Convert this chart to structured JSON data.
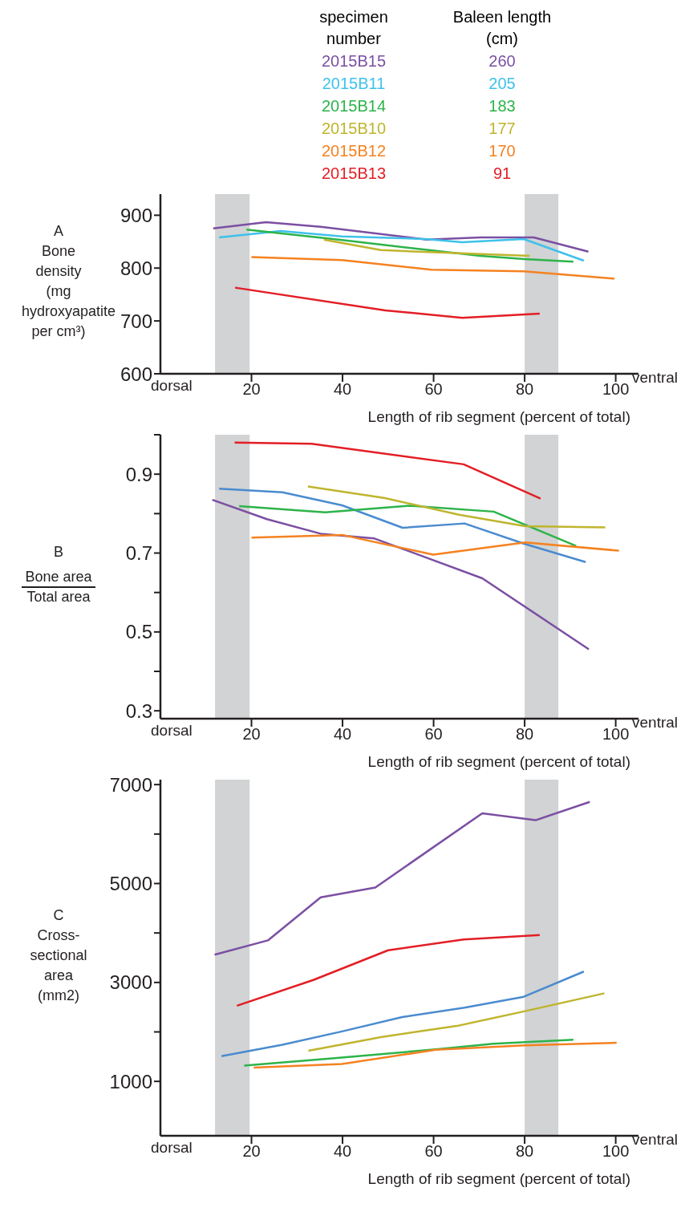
{
  "chart_data": [
    {
      "type": "line",
      "title": "A",
      "ylabel": "Bone density (mg hydroxyapatite per cm³)",
      "xlabel": "Length of rib segment (percent of total)",
      "legend": "top",
      "legend_title": "specimen number",
      "annotations": [
        "dorsal",
        "ventral",
        "Baleen length (cm)",
        "260",
        "205",
        "183",
        "177",
        "170",
        "91"
      ],
      "xlim": [
        0,
        105
      ],
      "xticks": [
        20,
        40,
        60,
        80,
        100
      ],
      "ylim": [
        600,
        940
      ],
      "yticks": [
        600,
        700,
        800,
        900
      ],
      "bands": [
        {
          "axis": "x",
          "from": 12,
          "to": 19.6,
          "color": "#d1d3d4"
        },
        {
          "axis": "x",
          "from": 80,
          "to": 87.4,
          "color": "#d1d3d4"
        }
      ],
      "series": [
        {
          "name": "2015B15",
          "color": "#7b4fa3",
          "x": [
            11.6,
            23.2,
            35.2,
            58.5,
            70.3,
            82,
            94
          ],
          "values": [
            875,
            887,
            878,
            854,
            858,
            858,
            831
          ]
        },
        {
          "name": "2015B11",
          "color": "#3fc1ea",
          "x": [
            12.9,
            26.4,
            39.9,
            58.2,
            66.3,
            79.8,
            93
          ],
          "values": [
            858,
            870,
            860,
            855,
            849,
            855,
            814
          ]
        },
        {
          "name": "2015B14",
          "color": "#2db34a",
          "x": [
            18.9,
            39.9,
            70.3,
            80,
            90.7
          ],
          "values": [
            873,
            853,
            823,
            817,
            812
          ]
        },
        {
          "name": "2015B10",
          "color": "#bfb52e",
          "x": [
            35.9,
            48.4,
            81.1
          ],
          "values": [
            854,
            834,
            823
          ]
        },
        {
          "name": "2015B12",
          "color": "#f58220",
          "x": [
            20,
            39.9,
            59.5,
            79.8,
            99.7
          ],
          "values": [
            821,
            815,
            797,
            794,
            780
          ]
        },
        {
          "name": "2015B13",
          "color": "#e31e25",
          "x": [
            16.4,
            49.4,
            66.3,
            83.3
          ],
          "values": [
            763,
            720,
            706,
            714
          ]
        }
      ]
    },
    {
      "type": "line",
      "title": "B",
      "ylabel": "Bone area\nTotal area",
      "xlabel": "Length of rib segment (percent of total)",
      "annotations": [
        "dorsal",
        "ventral"
      ],
      "xlim": [
        0,
        105
      ],
      "xticks": [
        20,
        40,
        60,
        80,
        100
      ],
      "ylim": [
        0.28,
        1.0
      ],
      "yticks": [
        0.3,
        {
          "value": 0.4,
          "label": null
        },
        0.5,
        {
          "value": 0.6,
          "label": null
        },
        0.7,
        {
          "value": 0.8,
          "label": null
        },
        0.9,
        {
          "value": 1.0,
          "label": null
        }
      ],
      "bands": [
        {
          "axis": "x",
          "from": 12,
          "to": 19.6,
          "color": "#d1d3d4"
        },
        {
          "axis": "x",
          "from": 80,
          "to": 87.4,
          "color": "#d1d3d4"
        }
      ],
      "series": [
        {
          "color": "#7b4fa3",
          "x": [
            11.4,
            23.4,
            35.2,
            47,
            70.7,
            94.1
          ],
          "values": [
            0.835,
            0.786,
            0.749,
            0.737,
            0.636,
            0.456
          ]
        },
        {
          "color": "#4a8bcf",
          "x": [
            12.9,
            26.8,
            39.9,
            53.2,
            66.8,
            79.8,
            93.4
          ],
          "values": [
            0.863,
            0.854,
            0.821,
            0.764,
            0.775,
            0.724,
            0.677
          ]
        },
        {
          "color": "#2db34a",
          "x": [
            17.3,
            36.2,
            54.8,
            73.2,
            91.3
          ],
          "values": [
            0.819,
            0.803,
            0.82,
            0.805,
            0.718
          ]
        },
        {
          "color": "#bfb52e",
          "x": [
            32.4,
            49.1,
            65.6,
            80.1,
            97.7
          ],
          "values": [
            0.869,
            0.84,
            0.797,
            0.768,
            0.765
          ]
        },
        {
          "color": "#f58220",
          "x": [
            20,
            39.9,
            59.9,
            80.1,
            100.7
          ],
          "values": [
            0.739,
            0.746,
            0.696,
            0.727,
            0.706
          ]
        },
        {
          "color": "#e31e25",
          "x": [
            16.3,
            33.2,
            66.6,
            83.5
          ],
          "values": [
            0.98,
            0.977,
            0.925,
            0.838
          ]
        }
      ]
    },
    {
      "type": "line",
      "title": "C",
      "ylabel": "Cross-sectional area (mm2)",
      "xlabel": "Length of rib segment (percent of total)",
      "annotations": [
        "dorsal",
        "ventral"
      ],
      "xlim": [
        0,
        105
      ],
      "xticks": [
        20,
        40,
        60,
        80,
        100
      ],
      "ylim": [
        -100,
        7100
      ],
      "yticks": [
        1000,
        {
          "value": 2000,
          "label": null
        },
        3000,
        {
          "value": 4000,
          "label": null
        },
        5000,
        {
          "value": 6000,
          "label": null
        },
        7000
      ],
      "bands": [
        {
          "axis": "x",
          "from": 12,
          "to": 19.6,
          "color": "#d1d3d4"
        },
        {
          "axis": "x",
          "from": 80,
          "to": 87.4,
          "color": "#d1d3d4"
        }
      ],
      "series": [
        {
          "color": "#7b4fa3",
          "x": [
            11.9,
            23.6,
            35.2,
            47.2,
            70.7,
            82.4,
            94.3
          ],
          "values": [
            3560,
            3850,
            4720,
            4920,
            6420,
            6280,
            6650
          ]
        },
        {
          "color": "#4a8bcf",
          "x": [
            13.4,
            26.8,
            39.9,
            53.1,
            66.8,
            79.8,
            93
          ],
          "values": [
            1510,
            1740,
            2010,
            2300,
            2490,
            2710,
            3220
          ]
        },
        {
          "color": "#2db34a",
          "x": [
            18.4,
            37.2,
            60.9,
            73.1,
            90.7
          ],
          "values": [
            1320,
            1460,
            1650,
            1760,
            1840
          ]
        },
        {
          "color": "#bfb52e",
          "x": [
            32.5,
            48.7,
            65.1,
            80.1,
            97.5
          ],
          "values": [
            1620,
            1900,
            2120,
            2420,
            2780
          ]
        },
        {
          "color": "#f58220",
          "x": [
            20.5,
            39.9,
            60.5,
            80.1,
            100.2
          ],
          "values": [
            1280,
            1350,
            1640,
            1730,
            1780
          ]
        },
        {
          "color": "#e31e25",
          "x": [
            16.8,
            33.6,
            50,
            66.6,
            83.3
          ],
          "values": [
            2530,
            3050,
            3650,
            3870,
            3960
          ]
        }
      ]
    }
  ]
}
